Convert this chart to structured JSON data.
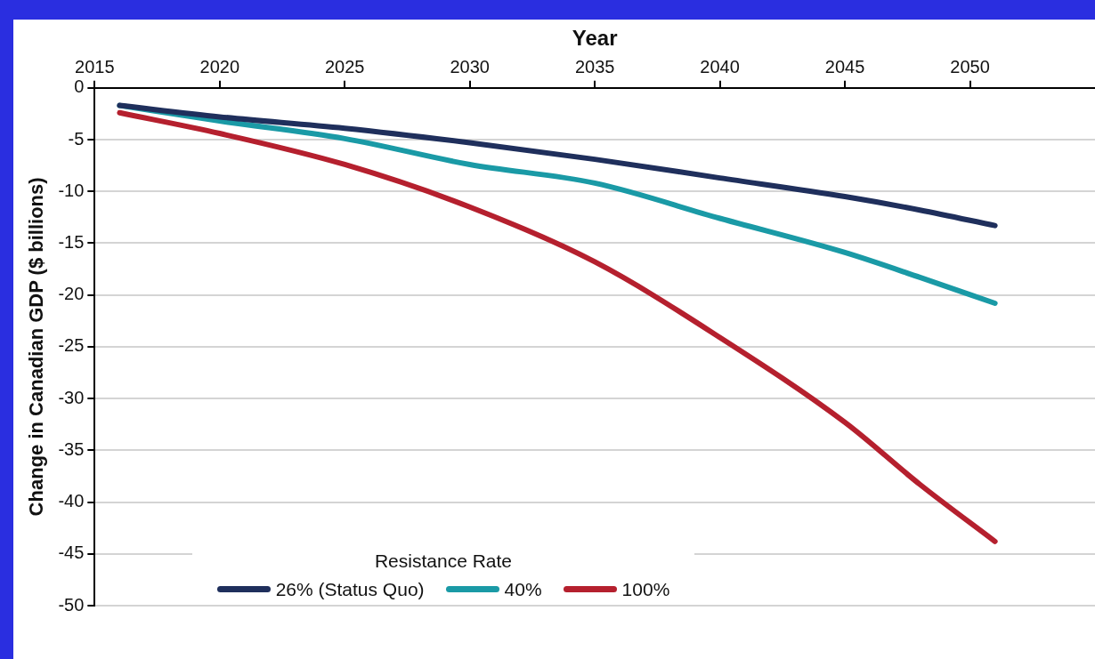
{
  "chart_data": {
    "type": "line",
    "xlabel": "Year",
    "ylabel": "Change in Canadian GDP ($ billions)",
    "legend_title": "Resistance Rate",
    "legend": "bottom",
    "grid": "y",
    "marker": "none",
    "line_style": "solid",
    "xlim": [
      2015,
      2055
    ],
    "xticks": [
      2015,
      2020,
      2025,
      2030,
      2035,
      2040,
      2045,
      2050
    ],
    "ylim": [
      -50,
      0
    ],
    "yticks": [
      0,
      -5,
      -10,
      -15,
      -20,
      -25,
      -30,
      -35,
      -40,
      -45,
      -50
    ],
    "x": [
      2016,
      2020,
      2025,
      2030,
      2035,
      2040,
      2045,
      2048,
      2051
    ],
    "series": [
      {
        "name": "26% (Status Quo)",
        "color": "#1f2f5c",
        "values": [
          -1.7,
          -2.8,
          -3.9,
          -5.3,
          -6.9,
          -8.7,
          -10.5,
          -11.8,
          -13.3
        ]
      },
      {
        "name": "40%",
        "color": "#1a9aa6",
        "values": [
          -1.7,
          -3.2,
          -4.9,
          -7.4,
          -9.2,
          -12.6,
          -15.9,
          -18.3,
          -20.8
        ]
      },
      {
        "name": "100%",
        "color": "#b5202e",
        "values": [
          -2.4,
          -4.4,
          -7.4,
          -11.5,
          -16.8,
          -24.1,
          -32.3,
          -38.3,
          -43.8
        ]
      }
    ]
  }
}
